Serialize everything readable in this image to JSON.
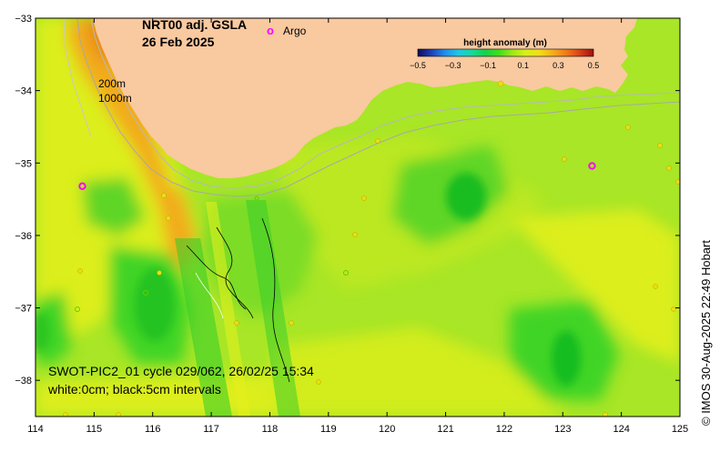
{
  "map": {
    "title_line1": "NRT00 adj. GSLA",
    "title_line2": "26 Feb 2025",
    "argo_label": "Argo",
    "argo_marker": "o",
    "depth_label_1": "200m",
    "depth_label_2": "1000m",
    "swot_line1": "SWOT-PIC2_01 cycle 029/062, 26/02/25 15:34",
    "swot_line2": "white:0cm; black:5cm intervals",
    "credit": "© IMOS 30-Aug-2025 22:49 Hobart",
    "lon_labels": [
      "114",
      "115",
      "116",
      "117",
      "118",
      "119",
      "120",
      "121",
      "122",
      "123",
      "124",
      "125"
    ],
    "lat_labels": [
      "−33",
      "−34",
      "−35",
      "−36",
      "−37",
      "−38"
    ],
    "argo_floats": [
      {
        "lon": 114.8,
        "lat": -35.32
      },
      {
        "lon": 123.5,
        "lat": -35.04
      }
    ]
  },
  "colorbar": {
    "title": "height anomaly (m)",
    "ticks": [
      "−0.5",
      "−0.3",
      "−0.1",
      "0.1",
      "0.3",
      "0.5"
    ],
    "colors": [
      "#08105a",
      "#1f3fb8",
      "#1f8ef0",
      "#19c9e6",
      "#16d9a0",
      "#15d24a",
      "#3fe01a",
      "#9ee81a",
      "#d8f018",
      "#f3dd1a",
      "#f5ad1a",
      "#f07a1a",
      "#d8401a",
      "#a01010"
    ]
  },
  "colors": {
    "land": "#f9c9a0",
    "ocean_base": "#a8e627",
    "shelf_orange": "#f2ab1c",
    "yellow": "#dcee1e",
    "green": "#3fd428",
    "dark_green": "#10b81e",
    "argo": "#ff00ff"
  }
}
